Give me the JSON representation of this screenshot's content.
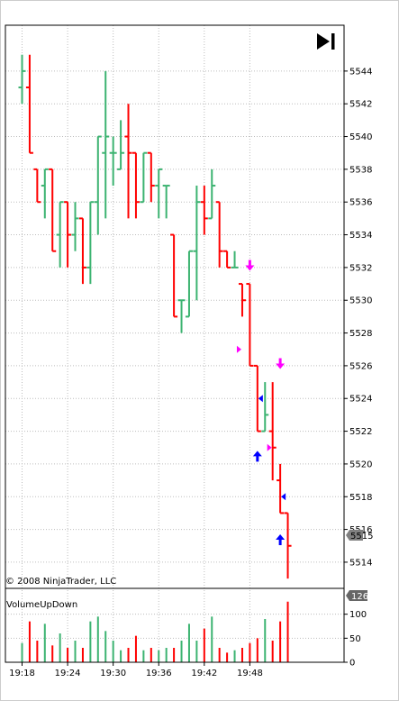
{
  "copyright": "© 2008 NinjaTrader, LLC",
  "indicator_label": "VolumeUpDown",
  "last_price_badge": "5515",
  "last_volume_badge": "126",
  "colors": {
    "up": "#3cb371",
    "down": "#ff0000",
    "grid": "#bdbdbd",
    "frame": "#000000",
    "signal_down": "#ff00ff",
    "signal_up": "#0000ff",
    "badge_bg": "#808080"
  },
  "chart_data": [
    {
      "type": "ohlc",
      "x_tick_labels": [
        "19:18",
        "19:24",
        "19:30",
        "19:36",
        "19:42",
        "19:48"
      ],
      "y_ticks": [
        5514,
        5516,
        5518,
        5520,
        5522,
        5524,
        5526,
        5528,
        5530,
        5532,
        5534,
        5536,
        5538,
        5540,
        5542,
        5544
      ],
      "ylim": [
        5512.4,
        5546.8
      ],
      "grid": true,
      "bars": [
        {
          "o": 5543.0,
          "h": 5545.0,
          "l": 5542.0,
          "c": 5544.0
        },
        {
          "o": 5543.0,
          "h": 5545.0,
          "l": 5539.0,
          "c": 5539.0
        },
        {
          "o": 5538.0,
          "h": 5538.0,
          "l": 5536.0,
          "c": 5536.0
        },
        {
          "o": 5537.0,
          "h": 5538.0,
          "l": 5535.0,
          "c": 5538.0
        },
        {
          "o": 5538.0,
          "h": 5538.0,
          "l": 5533.0,
          "c": 5533.0
        },
        {
          "o": 5534.0,
          "h": 5536.0,
          "l": 5532.0,
          "c": 5536.0
        },
        {
          "o": 5536.0,
          "h": 5536.0,
          "l": 5532.0,
          "c": 5534.0
        },
        {
          "o": 5534.0,
          "h": 5536.0,
          "l": 5533.0,
          "c": 5535.0
        },
        {
          "o": 5535.0,
          "h": 5535.0,
          "l": 5531.0,
          "c": 5532.0
        },
        {
          "o": 5532.0,
          "h": 5536.0,
          "l": 5531.0,
          "c": 5536.0
        },
        {
          "o": 5536.0,
          "h": 5540.0,
          "l": 5534.0,
          "c": 5540.0
        },
        {
          "o": 5539.0,
          "h": 5544.0,
          "l": 5535.0,
          "c": 5540.0
        },
        {
          "o": 5539.0,
          "h": 5540.0,
          "l": 5537.0,
          "c": 5539.0
        },
        {
          "o": 5538.0,
          "h": 5541.0,
          "l": 5538.0,
          "c": 5539.0
        },
        {
          "o": 5540.0,
          "h": 5542.0,
          "l": 5535.0,
          "c": 5539.0
        },
        {
          "o": 5539.0,
          "h": 5539.0,
          "l": 5535.0,
          "c": 5536.0
        },
        {
          "o": 5536.0,
          "h": 5539.0,
          "l": 5536.0,
          "c": 5539.0
        },
        {
          "o": 5539.0,
          "h": 5539.0,
          "l": 5536.0,
          "c": 5537.0
        },
        {
          "o": 5537.0,
          "h": 5538.0,
          "l": 5535.0,
          "c": 5538.0
        },
        {
          "o": 5537.0,
          "h": 5537.0,
          "l": 5535.0,
          "c": 5537.0
        },
        {
          "o": 5534.0,
          "h": 5534.0,
          "l": 5529.0,
          "c": 5529.0
        },
        {
          "o": 5530.0,
          "h": 5530.0,
          "l": 5528.0,
          "c": 5530.0
        },
        {
          "o": 5529.0,
          "h": 5533.0,
          "l": 5529.0,
          "c": 5533.0
        },
        {
          "o": 5533.0,
          "h": 5537.0,
          "l": 5530.0,
          "c": 5536.0
        },
        {
          "o": 5536.0,
          "h": 5537.0,
          "l": 5534.0,
          "c": 5535.0
        },
        {
          "o": 5535.0,
          "h": 5538.0,
          "l": 5535.0,
          "c": 5537.0
        },
        {
          "o": 5536.0,
          "h": 5536.0,
          "l": 5532.0,
          "c": 5533.0
        },
        {
          "o": 5533.0,
          "h": 5533.0,
          "l": 5532.0,
          "c": 5532.0
        },
        {
          "o": 5532.0,
          "h": 5533.0,
          "l": 5532.0,
          "c": 5532.0
        },
        {
          "o": 5531.0,
          "h": 5531.0,
          "l": 5529.0,
          "c": 5530.0
        },
        {
          "o": 5531.0,
          "h": 5531.0,
          "l": 5526.0,
          "c": 5526.0
        },
        {
          "o": 5526.0,
          "h": 5526.0,
          "l": 5522.0,
          "c": 5522.0
        },
        {
          "o": 5522.0,
          "h": 5525.0,
          "l": 5522.0,
          "c": 5523.0
        },
        {
          "o": 5522.0,
          "h": 5525.0,
          "l": 5519.0,
          "c": 5521.0
        },
        {
          "o": 5519.0,
          "h": 5520.0,
          "l": 5517.0,
          "c": 5517.0
        },
        {
          "o": 5517.0,
          "h": 5517.0,
          "l": 5513.0,
          "c": 5515.0
        }
      ],
      "signals": [
        {
          "bar": 30,
          "kind": "down-arrow",
          "price": 5531.8
        },
        {
          "bar": 29,
          "kind": "right-triangle",
          "price": 5527.0
        },
        {
          "bar": 34,
          "kind": "down-arrow",
          "price": 5525.8
        },
        {
          "bar": 31,
          "kind": "left-triangle",
          "price": 5524.0
        },
        {
          "bar": 31,
          "kind": "up-arrow",
          "price": 5520.8
        },
        {
          "bar": 33,
          "kind": "right-triangle",
          "price": 5521.0
        },
        {
          "bar": 34,
          "kind": "left-triangle",
          "price": 5518.0
        },
        {
          "bar": 34,
          "kind": "up-arrow",
          "price": 5515.7
        }
      ]
    },
    {
      "type": "bar",
      "name": "VolumeUpDown",
      "y_ticks": [
        0,
        50,
        100
      ],
      "ylim": [
        0,
        135
      ],
      "volume": [
        40,
        85,
        45,
        80,
        35,
        60,
        30,
        45,
        30,
        85,
        95,
        65,
        45,
        25,
        30,
        55,
        25,
        30,
        25,
        30,
        30,
        45,
        80,
        45,
        70,
        95,
        30,
        20,
        25,
        30,
        40,
        50,
        90,
        45,
        85,
        126
      ]
    }
  ]
}
